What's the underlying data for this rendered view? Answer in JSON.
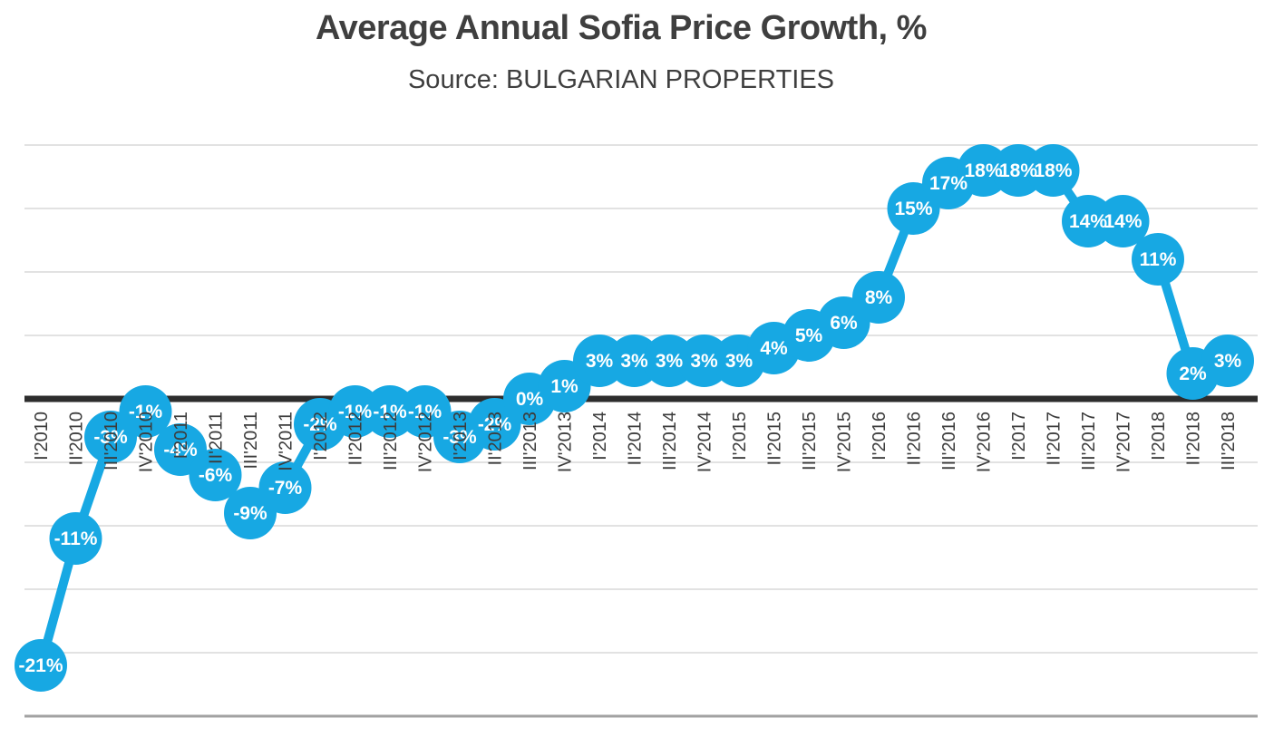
{
  "chart_data": {
    "type": "line",
    "title": "Average Annual Sofia Price Growth, %",
    "subtitle": "Source: BULGARIAN PROPERTIES",
    "categories": [
      "I'2010",
      "II'2010",
      "III'2010",
      "IV'2010",
      "I'2011",
      "II'2011",
      "III'2011",
      "IV'2011",
      "I'2012",
      "II'2012",
      "III'2012",
      "IV'2012",
      "I'2013",
      "II'2013",
      "III'2013",
      "IV'2013",
      "I'2014",
      "II'2014",
      "III'2014",
      "IV'2014",
      "I'2015",
      "II'2015",
      "III'2015",
      "IV'2015",
      "I'2016",
      "II'2016",
      "III'2016",
      "IV'2016",
      "I'2017",
      "II'2017",
      "III'2017",
      "IV'2017",
      "I'2018",
      "II'2018",
      "III'2018"
    ],
    "values": [
      -21,
      -11,
      -3,
      -1,
      -4,
      -6,
      -9,
      -7,
      -2,
      -1,
      -1,
      -1,
      -3,
      -2,
      0,
      1,
      3,
      3,
      3,
      3,
      3,
      4,
      5,
      6,
      8,
      15,
      17,
      18,
      18,
      18,
      14,
      14,
      11,
      2,
      3
    ],
    "point_labels": [
      "-21%",
      "-11%",
      "-3%",
      "-1%",
      "-4%",
      "-6%",
      "-9%",
      "-7%",
      "-2%",
      "-1%",
      "-1%",
      "-1%",
      "-3%",
      "-2%",
      "0%",
      "1%",
      "3%",
      "3%",
      "3%",
      "3%",
      "3%",
      "4%",
      "5%",
      "6%",
      "8%",
      "15%",
      "17%",
      "18%",
      "18%",
      "18%",
      "14%",
      "14%",
      "11%",
      "2%",
      "3%"
    ],
    "ylim": [
      -25,
      20
    ],
    "y_gridline_step_pct": 5,
    "grid": "horizontal",
    "legend": "none",
    "xlabel": "",
    "ylabel": "",
    "marker_style": "large-filled-circle",
    "x_tick_rotation_deg": 90,
    "colors": {
      "series": "#17A8E3",
      "point_label": "#FFFFFF",
      "axis_label": "#3C3C3C",
      "zero_line": "#2D2D2D",
      "gridline": "#E2E2E2",
      "axis_bottom_line": "#A2A2A2",
      "title": "#3F3F3F",
      "background": "#FFFFFF"
    }
  }
}
